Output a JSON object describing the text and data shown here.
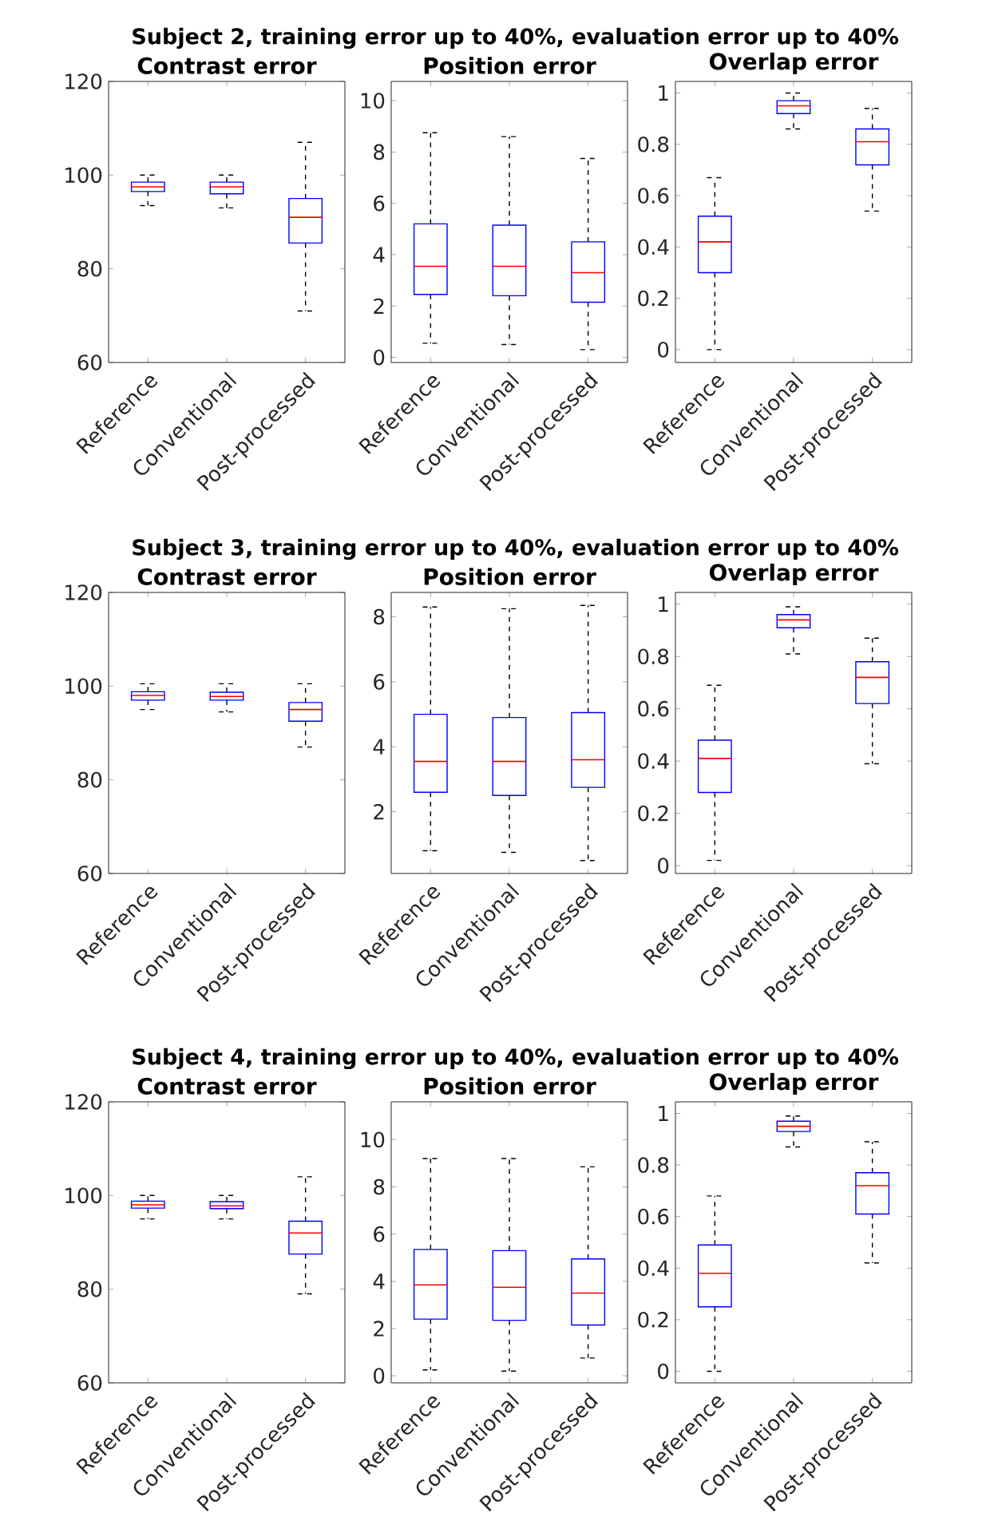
{
  "chart_data": [
    {
      "type": "box",
      "title": "Contrast error",
      "annotations": [
        "Subject 2, training error up to 40%, evaluation error up to 40%"
      ],
      "categories": [
        "Reference",
        "Conventional",
        "Post-processed"
      ],
      "ylim": [
        60,
        120
      ],
      "yticks": [
        60,
        80,
        100,
        120
      ],
      "boxes": [
        {
          "low": 93.5,
          "q1": 96.5,
          "median": 97.5,
          "q3": 98.5,
          "high": 100
        },
        {
          "low": 93,
          "q1": 96,
          "median": 97.5,
          "q3": 98.5,
          "high": 100
        },
        {
          "low": 71,
          "q1": 85.5,
          "median": 91,
          "q3": 95,
          "high": 107
        }
      ]
    },
    {
      "type": "box",
      "title": "Position error",
      "categories": [
        "Reference",
        "Conventional",
        "Post-processed"
      ],
      "ylim": [
        -0.2,
        10.75
      ],
      "yticks": [
        0,
        2,
        4,
        6,
        8,
        10
      ],
      "boxes": [
        {
          "low": 0.55,
          "q1": 2.45,
          "median": 3.55,
          "q3": 5.2,
          "high": 8.75
        },
        {
          "low": 0.5,
          "q1": 2.4,
          "median": 3.55,
          "q3": 5.15,
          "high": 8.6
        },
        {
          "low": 0.3,
          "q1": 2.15,
          "median": 3.3,
          "q3": 4.5,
          "high": 7.75
        }
      ]
    },
    {
      "type": "box",
      "title": "Overlap error",
      "categories": [
        "Reference",
        "Conventional",
        "Post-processed"
      ],
      "ylim": [
        -0.05,
        1.045
      ],
      "yticks": [
        0,
        0.2,
        0.4,
        0.6,
        0.8,
        1
      ],
      "boxes": [
        {
          "low": 0,
          "q1": 0.3,
          "median": 0.42,
          "q3": 0.52,
          "high": 0.67
        },
        {
          "low": 0.86,
          "q1": 0.92,
          "median": 0.95,
          "q3": 0.97,
          "high": 1.0
        },
        {
          "low": 0.54,
          "q1": 0.72,
          "median": 0.81,
          "q3": 0.86,
          "high": 0.94
        }
      ]
    },
    {
      "type": "box",
      "title": "Contrast error",
      "annotations": [
        "Subject 3, training error up to 40%, evaluation error up to 40%"
      ],
      "categories": [
        "Reference",
        "Conventional",
        "Post-processed"
      ],
      "ylim": [
        60,
        120
      ],
      "yticks": [
        60,
        80,
        100,
        120
      ],
      "boxes": [
        {
          "low": 95,
          "q1": 97,
          "median": 98,
          "q3": 98.8,
          "high": 100.5
        },
        {
          "low": 94.5,
          "q1": 97,
          "median": 97.8,
          "q3": 98.7,
          "high": 100.5
        },
        {
          "low": 87,
          "q1": 92.5,
          "median": 95,
          "q3": 96.5,
          "high": 100.5
        }
      ]
    },
    {
      "type": "box",
      "title": "Position error",
      "categories": [
        "Reference",
        "Conventional",
        "Post-processed"
      ],
      "ylim": [
        0.1,
        8.75
      ],
      "yticks": [
        2,
        4,
        6,
        8
      ],
      "boxes": [
        {
          "low": 0.8,
          "q1": 2.6,
          "median": 3.55,
          "q3": 5.0,
          "high": 8.3
        },
        {
          "low": 0.75,
          "q1": 2.5,
          "median": 3.55,
          "q3": 4.9,
          "high": 8.25
        },
        {
          "low": 0.5,
          "q1": 2.75,
          "median": 3.6,
          "q3": 5.05,
          "high": 8.35
        }
      ]
    },
    {
      "type": "box",
      "title": "Overlap error",
      "categories": [
        "Reference",
        "Conventional",
        "Post-processed"
      ],
      "ylim": [
        -0.03,
        1.045
      ],
      "yticks": [
        0,
        0.2,
        0.4,
        0.6,
        0.8,
        1
      ],
      "boxes": [
        {
          "low": 0.02,
          "q1": 0.28,
          "median": 0.41,
          "q3": 0.48,
          "high": 0.69
        },
        {
          "low": 0.81,
          "q1": 0.91,
          "median": 0.94,
          "q3": 0.96,
          "high": 0.99
        },
        {
          "low": 0.39,
          "q1": 0.62,
          "median": 0.72,
          "q3": 0.78,
          "high": 0.87
        }
      ]
    },
    {
      "type": "box",
      "title": "Contrast error",
      "annotations": [
        "Subject 4, training error up to 40%, evaluation error up to 40%"
      ],
      "categories": [
        "Reference",
        "Conventional",
        "Post-processed"
      ],
      "ylim": [
        60,
        120
      ],
      "yticks": [
        60,
        80,
        100,
        120
      ],
      "boxes": [
        {
          "low": 95,
          "q1": 97.3,
          "median": 98,
          "q3": 98.8,
          "high": 100
        },
        {
          "low": 95,
          "q1": 97.2,
          "median": 97.8,
          "q3": 98.7,
          "high": 100
        },
        {
          "low": 79,
          "q1": 87.5,
          "median": 92,
          "q3": 94.5,
          "high": 104
        }
      ]
    },
    {
      "type": "box",
      "title": "Position error",
      "categories": [
        "Reference",
        "Conventional",
        "Post-processed"
      ],
      "ylim": [
        -0.3,
        11.6
      ],
      "yticks": [
        0,
        2,
        4,
        6,
        8,
        10
      ],
      "boxes": [
        {
          "low": 0.25,
          "q1": 2.4,
          "median": 3.85,
          "q3": 5.35,
          "high": 9.2
        },
        {
          "low": 0.2,
          "q1": 2.35,
          "median": 3.75,
          "q3": 5.3,
          "high": 9.2
        },
        {
          "low": 0.75,
          "q1": 2.15,
          "median": 3.5,
          "q3": 4.95,
          "high": 8.85
        }
      ]
    },
    {
      "type": "box",
      "title": "Overlap error",
      "categories": [
        "Reference",
        "Conventional",
        "Post-processed"
      ],
      "ylim": [
        -0.045,
        1.045
      ],
      "yticks": [
        0,
        0.2,
        0.4,
        0.6,
        0.8,
        1
      ],
      "boxes": [
        {
          "low": 0,
          "q1": 0.25,
          "median": 0.38,
          "q3": 0.49,
          "high": 0.68
        },
        {
          "low": 0.87,
          "q1": 0.93,
          "median": 0.95,
          "q3": 0.97,
          "high": 0.99
        },
        {
          "low": 0.42,
          "q1": 0.61,
          "median": 0.72,
          "q3": 0.77,
          "high": 0.89
        }
      ]
    }
  ]
}
